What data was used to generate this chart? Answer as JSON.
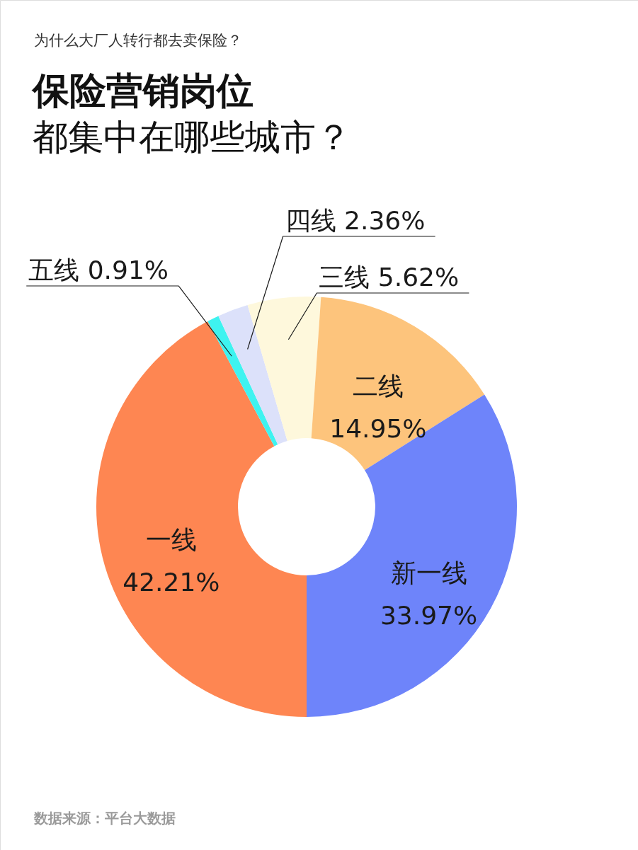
{
  "chart_data": {
    "type": "donut",
    "title": "保险营销岗位都集中在哪些城市？",
    "subtitle": "为什么大厂人转行都去卖保险？",
    "categories": [
      "一线",
      "五线",
      "四线",
      "三线",
      "二线",
      "新一线"
    ],
    "values": [
      42.21,
      0.91,
      2.36,
      5.62,
      14.95,
      33.97
    ],
    "colors": [
      "#fe8652",
      "#3ef3f0",
      "#dce1fa",
      "#fef8dc",
      "#fdc47c",
      "#6e84fa"
    ],
    "value_labels": [
      "42.21%",
      "0.91%",
      "2.36%",
      "5.62%",
      "14.95%",
      "33.97%"
    ],
    "annotations": [
      "数据来源：平台大数据"
    ]
  }
}
